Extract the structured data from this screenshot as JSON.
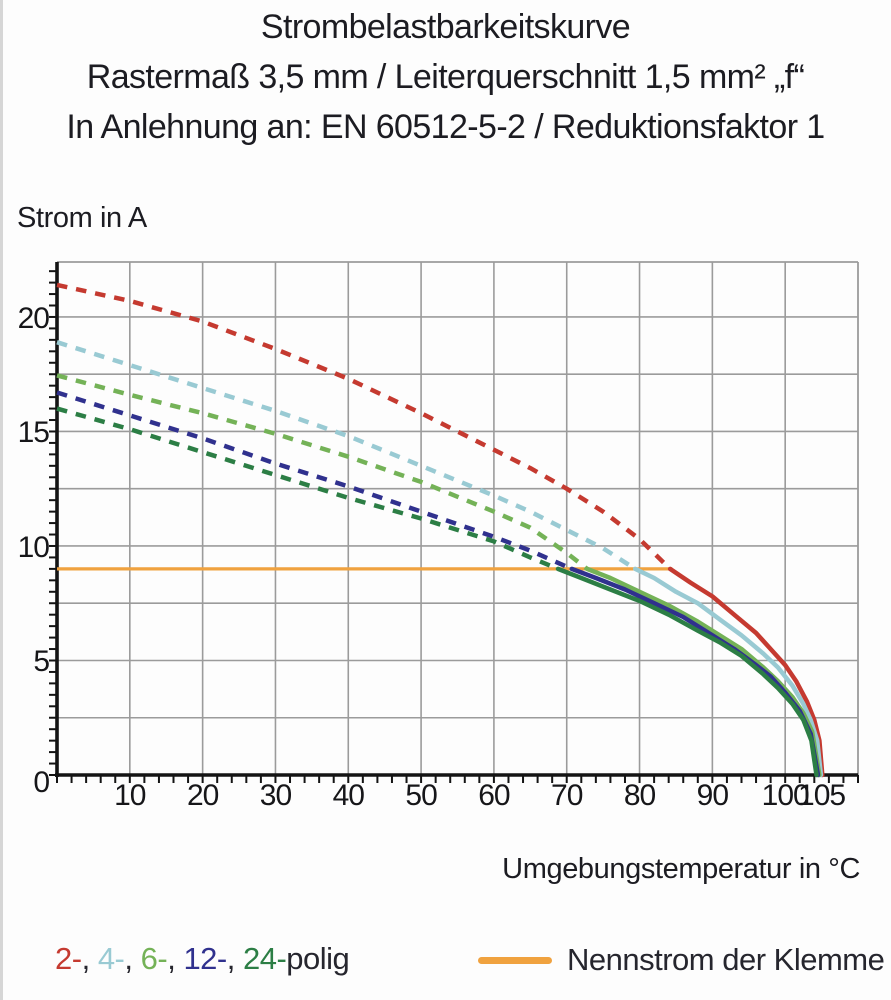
{
  "title": {
    "line1": "Strombelastbarkeitskurve",
    "line2": "Rastermaß 3,5 mm / Leiterquerschnitt 1,5 mm² „f“",
    "line3": "In Anlehnung an: EN 60512-5-2 / Reduktionsfaktor 1"
  },
  "axes": {
    "y_label": "Strom in A",
    "x_label": "Umgebungstemperatur in °C"
  },
  "legend": {
    "separator": ", ",
    "suffix": "polig",
    "text_color": "#26262e",
    "nennstrom_label": "Nennstrom der Klemme",
    "nennstrom_color": "#f0a23f"
  },
  "chart_data": {
    "type": "line",
    "title": "Strombelastbarkeitskurve",
    "xlabel": "Umgebungstemperatur in °C",
    "ylabel": "Strom in A",
    "xlim": [
      0,
      110
    ],
    "ylim": [
      0,
      22.4
    ],
    "x_ticks": [
      10,
      20,
      30,
      40,
      50,
      60,
      70,
      80,
      90,
      100,
      105
    ],
    "y_ticks": [
      0,
      5,
      10,
      15,
      20
    ],
    "x_gridline_start": 10,
    "x_gridline_end": 100,
    "x_gridline_step": 10,
    "y_gridline_start": 2.5,
    "y_gridline_end": 20,
    "y_gridline_step": 2.5,
    "x_minor_tick_step": 2,
    "y_minor_tick_step": 0.5,
    "grid_color": "#9b9b9b",
    "axis_color": "#141414",
    "nennstrom": {
      "label": "Nennstrom der Klemme",
      "value_a": 9,
      "color": "#f0a23f",
      "points": [
        [
          0,
          9
        ],
        [
          84.5,
          9
        ]
      ]
    },
    "series": [
      {
        "name": "2-polig",
        "legend_label": "2-",
        "color": "#c53a30",
        "dashed_points": [
          [
            0,
            21.4
          ],
          [
            10,
            20.7
          ],
          [
            20,
            19.8
          ],
          [
            30,
            18.6
          ],
          [
            40,
            17.3
          ],
          [
            50,
            15.8
          ],
          [
            60,
            14.2
          ],
          [
            65,
            13.4
          ],
          [
            70,
            12.5
          ],
          [
            75,
            11.5
          ],
          [
            80,
            10.3
          ],
          [
            84.2,
            9.0
          ]
        ],
        "solid_points": [
          [
            84.2,
            9.0
          ],
          [
            87,
            8.4
          ],
          [
            90,
            7.8
          ],
          [
            93,
            7.0
          ],
          [
            96,
            6.2
          ],
          [
            98,
            5.5
          ],
          [
            100,
            4.8
          ],
          [
            101.5,
            4.1
          ],
          [
            103,
            3.2
          ],
          [
            104,
            2.4
          ],
          [
            104.7,
            1.5
          ],
          [
            105.1,
            0
          ]
        ]
      },
      {
        "name": "4-polig",
        "legend_label": "4-",
        "color": "#99cad3",
        "dashed_points": [
          [
            0,
            18.9
          ],
          [
            10,
            17.9
          ],
          [
            20,
            16.9
          ],
          [
            30,
            15.9
          ],
          [
            40,
            14.8
          ],
          [
            50,
            13.5
          ],
          [
            60,
            12.2
          ],
          [
            65,
            11.5
          ],
          [
            70,
            10.7
          ],
          [
            75,
            9.9
          ],
          [
            79.4,
            9.0
          ]
        ],
        "solid_points": [
          [
            79.4,
            9.0
          ],
          [
            82,
            8.6
          ],
          [
            85,
            8.0
          ],
          [
            88,
            7.5
          ],
          [
            91,
            6.8
          ],
          [
            94,
            6.1
          ],
          [
            97,
            5.3
          ],
          [
            99,
            4.7
          ],
          [
            101,
            3.9
          ],
          [
            102.5,
            3.1
          ],
          [
            103.5,
            2.4
          ],
          [
            104.4,
            1.5
          ],
          [
            104.9,
            0
          ]
        ]
      },
      {
        "name": "6-polig",
        "legend_label": "6-",
        "color": "#74b257",
        "dashed_points": [
          [
            0,
            17.45
          ],
          [
            10,
            16.6
          ],
          [
            20,
            15.8
          ],
          [
            30,
            14.9
          ],
          [
            40,
            13.9
          ],
          [
            50,
            12.8
          ],
          [
            60,
            11.5
          ],
          [
            65,
            10.8
          ],
          [
            70,
            9.7
          ],
          [
            72.8,
            9.0
          ]
        ],
        "solid_points": [
          [
            72.8,
            9.0
          ],
          [
            76,
            8.6
          ],
          [
            80,
            8.0
          ],
          [
            84,
            7.4
          ],
          [
            88,
            6.7
          ],
          [
            91,
            6.1
          ],
          [
            94,
            5.5
          ],
          [
            97,
            4.7
          ],
          [
            99,
            4.1
          ],
          [
            101,
            3.4
          ],
          [
            102.5,
            2.7
          ],
          [
            103.7,
            1.9
          ],
          [
            104.7,
            0
          ]
        ]
      },
      {
        "name": "12-polig",
        "legend_label": "12-",
        "color": "#30318e",
        "dashed_points": [
          [
            0,
            16.7
          ],
          [
            10,
            15.7
          ],
          [
            20,
            14.7
          ],
          [
            30,
            13.6
          ],
          [
            40,
            12.6
          ],
          [
            50,
            11.5
          ],
          [
            60,
            10.4
          ],
          [
            65,
            9.8
          ],
          [
            70.7,
            9.0
          ]
        ],
        "solid_points": [
          [
            70.7,
            9.0
          ],
          [
            74,
            8.6
          ],
          [
            78,
            8.1
          ],
          [
            82,
            7.5
          ],
          [
            86,
            6.9
          ],
          [
            90,
            6.1
          ],
          [
            93,
            5.5
          ],
          [
            96,
            4.8
          ],
          [
            98,
            4.3
          ],
          [
            100,
            3.6
          ],
          [
            102,
            2.8
          ],
          [
            103.5,
            1.8
          ],
          [
            104.5,
            0
          ]
        ]
      },
      {
        "name": "24-polig",
        "legend_label": "24-",
        "color": "#2c7e45",
        "dashed_points": [
          [
            0,
            16.0
          ],
          [
            10,
            15.1
          ],
          [
            20,
            14.1
          ],
          [
            30,
            13.1
          ],
          [
            40,
            12.1
          ],
          [
            50,
            11.2
          ],
          [
            60,
            10.2
          ],
          [
            65,
            9.5
          ],
          [
            68.8,
            9.0
          ]
        ],
        "solid_points": [
          [
            68.8,
            9.0
          ],
          [
            72,
            8.6
          ],
          [
            76,
            8.1
          ],
          [
            80,
            7.6
          ],
          [
            84,
            7.0
          ],
          [
            88,
            6.3
          ],
          [
            91,
            5.8
          ],
          [
            94,
            5.2
          ],
          [
            97,
            4.4
          ],
          [
            99,
            3.8
          ],
          [
            101,
            3.1
          ],
          [
            102.5,
            2.4
          ],
          [
            103.6,
            1.5
          ],
          [
            104.3,
            0
          ]
        ]
      }
    ]
  }
}
